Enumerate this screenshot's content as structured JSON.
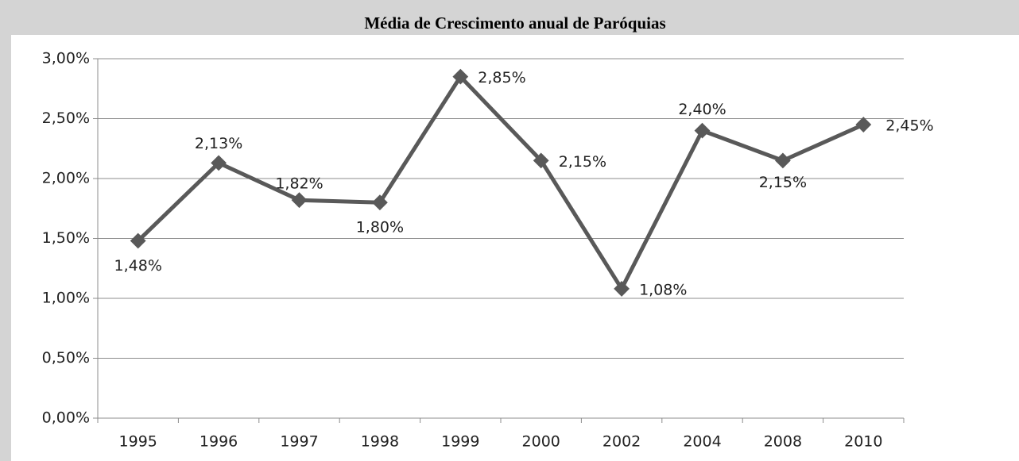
{
  "chart_data": {
    "type": "line",
    "title": "Média de Crescimento anual de Paróquias",
    "categories": [
      "1995",
      "1996",
      "1997",
      "1998",
      "1999",
      "2000",
      "2002",
      "2004",
      "2008",
      "2010"
    ],
    "series": [
      {
        "name": null,
        "color": "#595959",
        "values": [
          1.48,
          2.13,
          1.82,
          1.8,
          2.85,
          2.15,
          1.08,
          2.4,
          2.15,
          2.45
        ],
        "value_labels": [
          "1,48%",
          "2,13%",
          "1,82%",
          "1,80%",
          "2,85%",
          "2,15%",
          "1,08%",
          "2,40%",
          "2,15%",
          "2,45%"
        ]
      }
    ],
    "ylim": [
      0,
      3
    ],
    "yticks": [
      {
        "value": 0,
        "label": "0,00%"
      },
      {
        "value": 0.5,
        "label": "0,50%"
      },
      {
        "value": 1,
        "label": "1,00%"
      },
      {
        "value": 1.5,
        "label": "1,50%"
      },
      {
        "value": 2,
        "label": "2,00%"
      },
      {
        "value": 2.5,
        "label": "2,50%"
      },
      {
        "value": 3,
        "label": "3,00%"
      }
    ],
    "grid": true
  }
}
